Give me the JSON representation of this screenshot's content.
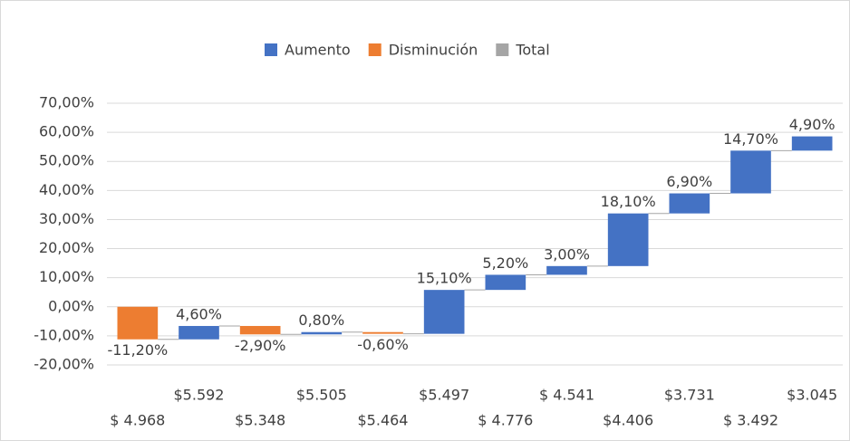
{
  "chart_data": {
    "type": "waterfall",
    "legend": [
      {
        "name": "Aumento",
        "color": "#4472c4"
      },
      {
        "name": "Disminución",
        "color": "#ed7d31"
      },
      {
        "name": "Total",
        "color": "#a5a5a5"
      }
    ],
    "categories": [
      "$ 4.968",
      "$5.592",
      "$5.348",
      "$5.505",
      "$5.464",
      "$5.497",
      "$ 4.776",
      "$ 4.541",
      "$4.406",
      "$3.731",
      "$ 3.492",
      "$3.045"
    ],
    "values": [
      -11.2,
      4.6,
      -2.9,
      0.8,
      -0.6,
      15.1,
      5.2,
      3.0,
      18.1,
      6.9,
      14.7,
      4.9
    ],
    "value_labels": [
      "-11,20%",
      "4,60%",
      "-2,90%",
      "0,80%",
      "-0,60%",
      "15,10%",
      "5,20%",
      "3,00%",
      "18,10%",
      "6,90%",
      "14,70%",
      "4,90%"
    ],
    "ylim": [
      -20,
      70
    ],
    "yticks": [
      {
        "value": -20,
        "label": "-20,00%"
      },
      {
        "value": -10,
        "label": "-10,00%"
      },
      {
        "value": 0,
        "label": "0,00%"
      },
      {
        "value": 10,
        "label": "10,00%"
      },
      {
        "value": 20,
        "label": "20,00%"
      },
      {
        "value": 30,
        "label": "30,00%"
      },
      {
        "value": 40,
        "label": "40,00%"
      },
      {
        "value": 50,
        "label": "50,00%"
      },
      {
        "value": 60,
        "label": "60,00%"
      },
      {
        "value": 70,
        "label": "70,00%"
      }
    ],
    "grid": true
  }
}
